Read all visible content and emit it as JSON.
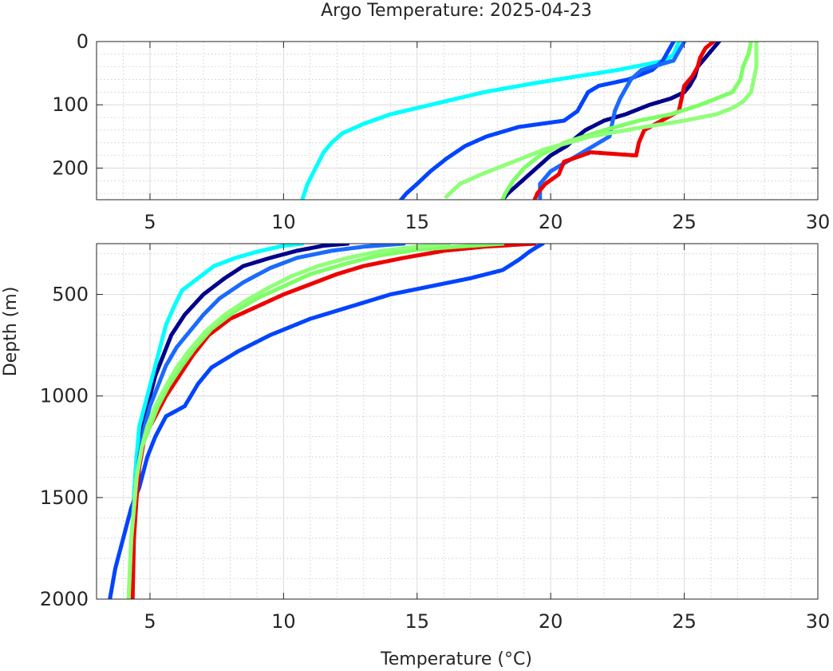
{
  "chart_data": {
    "type": "scatter",
    "title": "Argo Temperature: 2025-04-23",
    "xlabel": "Temperature (°C)",
    "ylabel": "Depth (m)",
    "xlim": [
      3,
      30
    ],
    "x_ticks": [
      "5",
      "10",
      "15",
      "20",
      "25",
      "30"
    ],
    "y_axis_reversed": true,
    "grid": "major and minor, dotted",
    "panels": [
      {
        "name": "upper",
        "ylim": [
          0,
          250
        ],
        "y_ticks": [
          "0",
          "100",
          "200"
        ]
      },
      {
        "name": "lower",
        "ylim": [
          250,
          2000
        ],
        "y_ticks": [
          "500",
          "1000",
          "1500",
          "2000"
        ]
      }
    ],
    "series": [
      {
        "color": "#00008b",
        "upper": [
          [
            26.3,
            0
          ],
          [
            26.1,
            10
          ],
          [
            25.8,
            25
          ],
          [
            25.5,
            40
          ],
          [
            25.4,
            55
          ],
          [
            25.2,
            70
          ],
          [
            25.0,
            80
          ],
          [
            24.5,
            90
          ],
          [
            23.7,
            100
          ],
          [
            22.8,
            115
          ],
          [
            22.0,
            125
          ],
          [
            21.3,
            140
          ],
          [
            21.0,
            150
          ],
          [
            20.6,
            165
          ],
          [
            20.0,
            180
          ],
          [
            19.6,
            195
          ],
          [
            19.2,
            210
          ],
          [
            18.8,
            225
          ],
          [
            18.4,
            240
          ],
          [
            18.2,
            250
          ]
        ],
        "lower": [
          [
            12.4,
            250
          ],
          [
            11.5,
            260
          ],
          [
            10.5,
            285
          ],
          [
            9.5,
            320
          ],
          [
            8.5,
            360
          ],
          [
            7.8,
            420
          ],
          [
            7.0,
            500
          ],
          [
            6.3,
            600
          ],
          [
            5.8,
            700
          ],
          [
            5.5,
            800
          ],
          [
            5.2,
            900
          ],
          [
            5.0,
            1000
          ],
          [
            4.8,
            1100
          ],
          [
            4.6,
            1200
          ],
          [
            4.5,
            1300
          ],
          [
            4.4,
            1500
          ],
          [
            4.35,
            1700
          ],
          [
            4.3,
            2000
          ]
        ]
      },
      {
        "color": "#00ffff",
        "upper": [
          [
            24.8,
            0
          ],
          [
            24.7,
            10
          ],
          [
            24.6,
            20
          ],
          [
            24.3,
            30
          ],
          [
            22.5,
            45
          ],
          [
            19.5,
            65
          ],
          [
            17.5,
            80
          ],
          [
            15.5,
            100
          ],
          [
            14.0,
            115
          ],
          [
            13.0,
            130
          ],
          [
            12.2,
            145
          ],
          [
            11.8,
            160
          ],
          [
            11.5,
            175
          ],
          [
            11.2,
            200
          ],
          [
            10.9,
            225
          ],
          [
            10.7,
            250
          ]
        ],
        "lower": [
          [
            10.7,
            250
          ],
          [
            10.0,
            260
          ],
          [
            9.0,
            290
          ],
          [
            8.2,
            320
          ],
          [
            7.4,
            360
          ],
          [
            6.8,
            420
          ],
          [
            6.2,
            480
          ],
          [
            5.9,
            560
          ],
          [
            5.6,
            650
          ],
          [
            5.4,
            750
          ],
          [
            5.2,
            850
          ],
          [
            5.0,
            950
          ],
          [
            4.8,
            1050
          ],
          [
            4.6,
            1150
          ],
          [
            4.5,
            1300
          ],
          [
            4.4,
            1500
          ],
          [
            4.35,
            1700
          ],
          [
            4.3,
            2000
          ]
        ]
      },
      {
        "color": "#0044ff",
        "upper": [
          [
            24.6,
            0
          ],
          [
            24.4,
            15
          ],
          [
            24.2,
            30
          ],
          [
            23.8,
            45
          ],
          [
            22.9,
            60
          ],
          [
            21.8,
            70
          ],
          [
            21.4,
            80
          ],
          [
            21.2,
            95
          ],
          [
            21.0,
            110
          ],
          [
            20.5,
            125
          ],
          [
            18.8,
            135
          ],
          [
            17.6,
            150
          ],
          [
            16.8,
            165
          ],
          [
            16.1,
            185
          ],
          [
            15.5,
            205
          ],
          [
            15.0,
            225
          ],
          [
            14.6,
            240
          ],
          [
            14.4,
            250
          ]
        ],
        "lower": [
          [
            19.7,
            250
          ],
          [
            19.5,
            265
          ],
          [
            19.2,
            290
          ],
          [
            18.8,
            330
          ],
          [
            18.2,
            380
          ],
          [
            17.0,
            420
          ],
          [
            15.5,
            460
          ],
          [
            14.0,
            500
          ],
          [
            12.5,
            560
          ],
          [
            11.0,
            620
          ],
          [
            9.5,
            700
          ],
          [
            8.3,
            780
          ],
          [
            7.3,
            860
          ],
          [
            6.8,
            940
          ],
          [
            6.3,
            1050
          ],
          [
            5.6,
            1100
          ],
          [
            5.2,
            1200
          ],
          [
            4.9,
            1300
          ],
          [
            4.6,
            1450
          ],
          [
            4.3,
            1550
          ],
          [
            4.1,
            1650
          ],
          [
            3.9,
            1750
          ],
          [
            3.7,
            1850
          ],
          [
            3.5,
            2000
          ]
        ]
      },
      {
        "color": "#1a6aff",
        "upper": [
          [
            25.0,
            0
          ],
          [
            24.8,
            15
          ],
          [
            24.6,
            30
          ],
          [
            23.4,
            45
          ],
          [
            23.0,
            60
          ],
          [
            22.8,
            75
          ],
          [
            22.6,
            90
          ],
          [
            22.4,
            110
          ],
          [
            22.3,
            130
          ],
          [
            22.2,
            150
          ],
          [
            21.6,
            165
          ],
          [
            20.8,
            185
          ],
          [
            20.0,
            205
          ],
          [
            19.6,
            225
          ],
          [
            19.6,
            250
          ]
        ],
        "lower": [
          [
            14.5,
            250
          ],
          [
            13.0,
            265
          ],
          [
            11.8,
            285
          ],
          [
            10.5,
            320
          ],
          [
            9.5,
            370
          ],
          [
            8.5,
            440
          ],
          [
            7.6,
            520
          ],
          [
            7.0,
            600
          ],
          [
            6.5,
            680
          ],
          [
            6.0,
            760
          ],
          [
            5.6,
            850
          ],
          [
            5.3,
            950
          ],
          [
            5.0,
            1050
          ],
          [
            4.8,
            1150
          ],
          [
            4.6,
            1300
          ],
          [
            4.5,
            1450
          ],
          [
            4.4,
            1600
          ],
          [
            4.35,
            1800
          ],
          [
            4.3,
            2000
          ]
        ]
      },
      {
        "color": "#ee0000",
        "upper": [
          [
            26.1,
            0
          ],
          [
            25.8,
            10
          ],
          [
            25.6,
            25
          ],
          [
            25.5,
            40
          ],
          [
            25.3,
            55
          ],
          [
            25.0,
            70
          ],
          [
            24.9,
            90
          ],
          [
            24.8,
            110
          ],
          [
            23.5,
            140
          ],
          [
            23.3,
            160
          ],
          [
            23.2,
            180
          ],
          [
            21.5,
            175
          ],
          [
            20.5,
            190
          ],
          [
            20.3,
            210
          ],
          [
            19.8,
            225
          ],
          [
            19.5,
            240
          ],
          [
            19.4,
            250
          ]
        ],
        "lower": [
          [
            19.4,
            250
          ],
          [
            17.5,
            265
          ],
          [
            16.0,
            285
          ],
          [
            14.5,
            320
          ],
          [
            13.0,
            360
          ],
          [
            12.0,
            400
          ],
          [
            11.0,
            450
          ],
          [
            10.0,
            500
          ],
          [
            9.0,
            560
          ],
          [
            8.0,
            620
          ],
          [
            7.2,
            700
          ],
          [
            6.6,
            800
          ],
          [
            6.1,
            900
          ],
          [
            5.6,
            1000
          ],
          [
            5.2,
            1100
          ],
          [
            4.8,
            1200
          ],
          [
            4.6,
            1350
          ],
          [
            4.5,
            1500
          ],
          [
            4.4,
            1700
          ],
          [
            4.35,
            2000
          ]
        ]
      },
      {
        "color": "#7dff66",
        "upper": [
          [
            27.5,
            0
          ],
          [
            27.4,
            20
          ],
          [
            27.2,
            40
          ],
          [
            27.1,
            60
          ],
          [
            26.8,
            80
          ],
          [
            25.6,
            100
          ],
          [
            24.5,
            115
          ],
          [
            23.3,
            125
          ],
          [
            22.0,
            140
          ],
          [
            20.5,
            160
          ],
          [
            19.6,
            180
          ],
          [
            19.0,
            200
          ],
          [
            18.6,
            220
          ],
          [
            18.3,
            240
          ],
          [
            18.2,
            250
          ]
        ],
        "lower": [
          [
            18.2,
            250
          ],
          [
            16.5,
            265
          ],
          [
            15.0,
            280
          ],
          [
            13.5,
            310
          ],
          [
            12.3,
            350
          ],
          [
            11.0,
            400
          ],
          [
            10.0,
            460
          ],
          [
            9.0,
            520
          ],
          [
            8.1,
            590
          ],
          [
            7.3,
            670
          ],
          [
            6.7,
            760
          ],
          [
            6.2,
            850
          ],
          [
            5.7,
            950
          ],
          [
            5.3,
            1050
          ],
          [
            5.0,
            1150
          ],
          [
            4.7,
            1250
          ],
          [
            4.5,
            1400
          ],
          [
            4.4,
            1550
          ],
          [
            4.3,
            1700
          ],
          [
            4.25,
            1850
          ],
          [
            4.2,
            2000
          ]
        ]
      },
      {
        "color": "#90ff7a",
        "upper": [
          [
            27.7,
            0
          ],
          [
            27.7,
            20
          ],
          [
            27.7,
            40
          ],
          [
            27.6,
            60
          ],
          [
            27.5,
            80
          ],
          [
            27.2,
            95
          ],
          [
            26.8,
            105
          ],
          [
            26.2,
            115
          ],
          [
            25.0,
            125
          ],
          [
            23.5,
            135
          ],
          [
            21.5,
            150
          ],
          [
            19.8,
            170
          ],
          [
            18.6,
            190
          ],
          [
            17.4,
            210
          ],
          [
            16.6,
            225
          ],
          [
            16.1,
            245
          ]
        ],
        "lower": [
          [
            16.2,
            250
          ],
          [
            15.0,
            265
          ],
          [
            13.7,
            285
          ],
          [
            12.4,
            320
          ],
          [
            11.3,
            360
          ],
          [
            10.3,
            410
          ],
          [
            9.4,
            470
          ],
          [
            8.6,
            530
          ],
          [
            7.8,
            600
          ],
          [
            7.1,
            680
          ],
          [
            6.5,
            770
          ],
          [
            6.0,
            860
          ],
          [
            5.6,
            950
          ],
          [
            5.2,
            1050
          ],
          [
            4.9,
            1150
          ],
          [
            4.7,
            1250
          ],
          [
            4.5,
            1400
          ],
          [
            4.4,
            1550
          ],
          [
            4.3,
            1700
          ],
          [
            4.25,
            1850
          ],
          [
            4.2,
            2000
          ]
        ]
      }
    ]
  }
}
